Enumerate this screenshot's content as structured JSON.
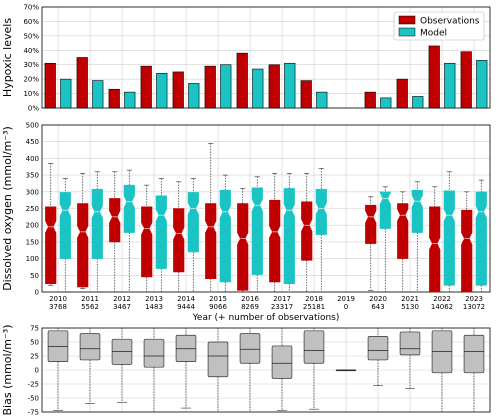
{
  "chart_data": [
    {
      "type": "bar",
      "ylabel": "Hypoxic levels",
      "ylim": [
        0,
        70
      ],
      "yticks": [
        "0%",
        "10%",
        "20%",
        "30%",
        "40%",
        "50%",
        "60%",
        "70%"
      ],
      "grid": true,
      "legend_position": "top-right",
      "categories": [
        "2010",
        "2011",
        "2012",
        "2013",
        "2014",
        "2015",
        "2016",
        "2017",
        "2018",
        "2019",
        "2020",
        "2021",
        "2022",
        "2023"
      ],
      "series": [
        {
          "name": "Observations",
          "color": "#c00000",
          "values": [
            31,
            35,
            13,
            29,
            25,
            29,
            38,
            30,
            19,
            0,
            11,
            20,
            43,
            39
          ]
        },
        {
          "name": "Model",
          "color": "#1bc4c4",
          "values": [
            20,
            19,
            11,
            24,
            17,
            30,
            27,
            31,
            11,
            0,
            7,
            8,
            31,
            33
          ]
        }
      ]
    },
    {
      "type": "box",
      "ylabel": "Dissolved oxygen (mmol/m⁻³)",
      "xlabel": "Year (+ number of observations)",
      "ylim": [
        0,
        500
      ],
      "yticks": [
        "0",
        "50",
        "100",
        "150",
        "200",
        "250",
        "300",
        "350",
        "400",
        "450",
        "500"
      ],
      "grid": true,
      "categories": [
        "2010",
        "2011",
        "2012",
        "2013",
        "2014",
        "2015",
        "2016",
        "2017",
        "2018",
        "2019",
        "2020",
        "2021",
        "2022",
        "2023"
      ],
      "n_observations": [
        "3768",
        "5562",
        "3467",
        "1483",
        "9444",
        "9066",
        "8269",
        "23317",
        "25181",
        "0",
        "643",
        "5130",
        "14062",
        "13072"
      ],
      "series": [
        {
          "name": "Observations",
          "color": "#c00000",
          "boxes": [
            {
              "whislo": 20,
              "q1": 25,
              "med": 195,
              "q3": 255,
              "whishi": 385
            },
            {
              "whislo": 10,
              "q1": 15,
              "med": 180,
              "q3": 265,
              "whishi": 355
            },
            {
              "whislo": 0,
              "q1": 150,
              "med": 225,
              "q3": 280,
              "whishi": 360
            },
            {
              "whislo": 0,
              "q1": 45,
              "med": 190,
              "q3": 255,
              "whishi": 320
            },
            {
              "whislo": 0,
              "q1": 60,
              "med": 175,
              "q3": 250,
              "whishi": 330
            },
            {
              "whislo": 0,
              "q1": 40,
              "med": 195,
              "q3": 265,
              "whishi": 445
            },
            {
              "whislo": 0,
              "q1": 5,
              "med": 160,
              "q3": 265,
              "whishi": 310
            },
            {
              "whislo": 0,
              "q1": 30,
              "med": 180,
              "q3": 275,
              "whishi": 355
            },
            {
              "whislo": 0,
              "q1": 95,
              "med": 200,
              "q3": 270,
              "whishi": 355
            },
            null,
            {
              "whislo": 5,
              "q1": 145,
              "med": 225,
              "q3": 260,
              "whishi": 285
            },
            {
              "whislo": 0,
              "q1": 100,
              "med": 230,
              "q3": 265,
              "whishi": 300
            },
            {
              "whislo": 0,
              "q1": 0,
              "med": 145,
              "q3": 255,
              "whishi": 315
            },
            {
              "whislo": 0,
              "q1": 0,
              "med": 160,
              "q3": 245,
              "whishi": 300
            }
          ]
        },
        {
          "name": "Model",
          "color": "#1bc4c4",
          "boxes": [
            {
              "whislo": 0,
              "q1": 100,
              "med": 245,
              "q3": 298,
              "whishi": 340
            },
            {
              "whislo": 0,
              "q1": 100,
              "med": 240,
              "q3": 308,
              "whishi": 360
            },
            {
              "whislo": 0,
              "q1": 178,
              "med": 270,
              "q3": 320,
              "whishi": 365
            },
            {
              "whislo": 0,
              "q1": 70,
              "med": 230,
              "q3": 288,
              "whishi": 340
            },
            {
              "whislo": 0,
              "q1": 120,
              "med": 250,
              "q3": 298,
              "whishi": 340
            },
            {
              "whislo": 0,
              "q1": 30,
              "med": 240,
              "q3": 305,
              "whishi": 350
            },
            {
              "whislo": 0,
              "q1": 52,
              "med": 260,
              "q3": 312,
              "whishi": 345
            },
            {
              "whislo": 0,
              "q1": 25,
              "med": 245,
              "q3": 310,
              "whishi": 355
            },
            {
              "whislo": 0,
              "q1": 172,
              "med": 250,
              "q3": 308,
              "whishi": 370
            },
            null,
            {
              "whislo": 0,
              "q1": 190,
              "med": 280,
              "q3": 300,
              "whishi": 315
            },
            {
              "whislo": 0,
              "q1": 178,
              "med": 272,
              "q3": 305,
              "whishi": 330
            },
            {
              "whislo": 0,
              "q1": 20,
              "med": 230,
              "q3": 303,
              "whishi": 360
            },
            {
              "whislo": 0,
              "q1": 20,
              "med": 240,
              "q3": 300,
              "whishi": 335
            }
          ]
        }
      ]
    },
    {
      "type": "box",
      "ylabel": "Bias (mmol/m⁻³)",
      "ylim": [
        -75,
        75
      ],
      "yticks": [
        "-75",
        "-50",
        "-25",
        "0",
        "25",
        "50",
        "75"
      ],
      "grid": true,
      "categories": [
        "2010",
        "2011",
        "2012",
        "2013",
        "2014",
        "2015",
        "2016",
        "2017",
        "2018",
        "2019",
        "2020",
        "2021",
        "2022",
        "2023"
      ],
      "series": [
        {
          "name": "Bias",
          "color": "#c0c0c0",
          "boxes": [
            {
              "whislo": -72,
              "q1": 15,
              "med": 42,
              "q3": 70,
              "whishi": 75
            },
            {
              "whislo": -60,
              "q1": 18,
              "med": 38,
              "q3": 65,
              "whishi": 75
            },
            {
              "whislo": -58,
              "q1": 10,
              "med": 33,
              "q3": 55,
              "whishi": 75
            },
            {
              "whislo": -75,
              "q1": 5,
              "med": 25,
              "q3": 55,
              "whishi": 75
            },
            {
              "whislo": -68,
              "q1": 15,
              "med": 38,
              "q3": 62,
              "whishi": 75
            },
            {
              "whislo": -75,
              "q1": -12,
              "med": 25,
              "q3": 50,
              "whishi": 75
            },
            {
              "whislo": -75,
              "q1": 12,
              "med": 37,
              "q3": 65,
              "whishi": 75
            },
            {
              "whislo": -72,
              "q1": -15,
              "med": 12,
              "q3": 43,
              "whishi": 75
            },
            {
              "whislo": -70,
              "q1": 12,
              "med": 35,
              "q3": 70,
              "whishi": 75
            },
            {
              "whislo": 0,
              "q1": 0,
              "med": 0,
              "q3": 0,
              "whishi": 0
            },
            {
              "whislo": -28,
              "q1": 18,
              "med": 35,
              "q3": 60,
              "whishi": 75
            },
            {
              "whislo": -33,
              "q1": 27,
              "med": 38,
              "q3": 68,
              "whishi": 75
            },
            {
              "whislo": -75,
              "q1": -5,
              "med": 33,
              "q3": 70,
              "whishi": 75
            },
            {
              "whislo": -75,
              "q1": -5,
              "med": 33,
              "q3": 62,
              "whishi": 75
            }
          ]
        }
      ]
    }
  ]
}
